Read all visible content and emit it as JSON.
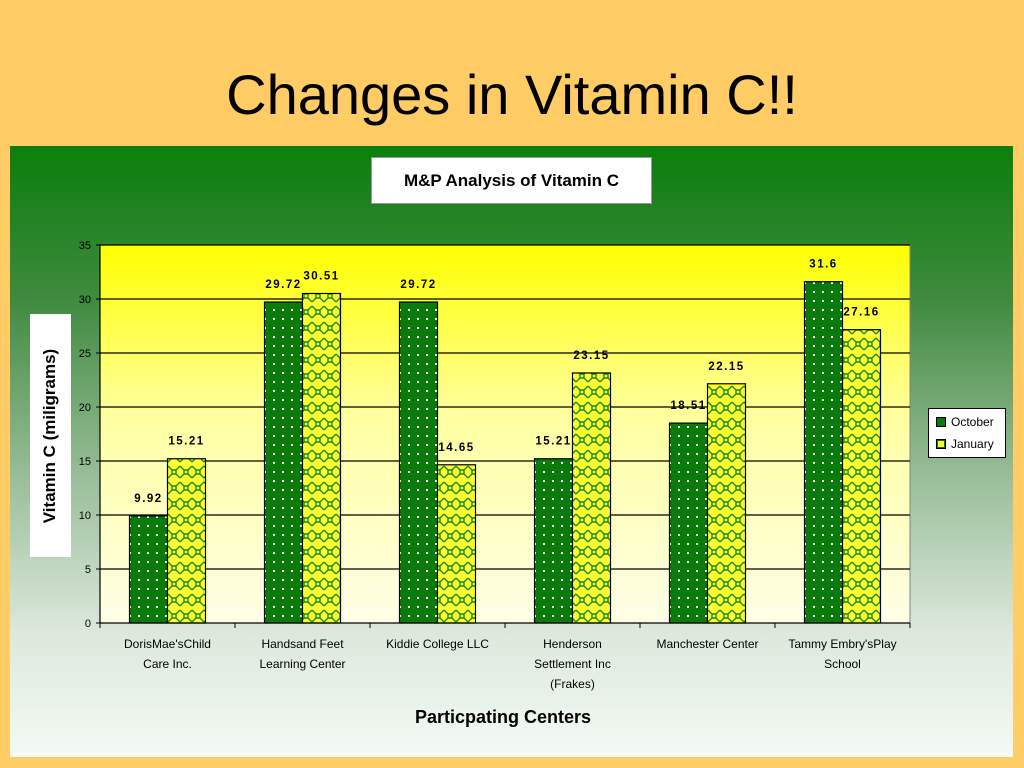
{
  "slide": {
    "title": "Changes in Vitamin C!!"
  },
  "colors": {
    "october": "#0a7a0a",
    "january": "#ffff33",
    "plot_top": "#ffff00",
    "plot_bottom": "#ffffe8",
    "slide_bg": "#ffcc66"
  },
  "chart_data": {
    "type": "bar",
    "title": "M&P Analysis of Vitamin C",
    "xlabel": "Particpating Centers",
    "ylabel": "Vitamin C (miligrams)",
    "ylim": [
      0,
      35
    ],
    "yticks": [
      0,
      5,
      10,
      15,
      20,
      25,
      30,
      35
    ],
    "grid": true,
    "legend_position": "right",
    "categories": [
      [
        "DorisMae'sChild",
        "Care Inc."
      ],
      [
        "Handsand Feet",
        "Learning Center"
      ],
      [
        "Kiddie College LLC"
      ],
      [
        "Henderson",
        "Settlement Inc",
        "(Frakes)"
      ],
      [
        "Manchester Center"
      ],
      [
        "Tammy Embry'sPlay",
        "School"
      ]
    ],
    "series": [
      {
        "name": "October",
        "values": [
          9.92,
          29.72,
          29.72,
          15.21,
          18.51,
          31.6
        ],
        "labels": [
          "9.92",
          "29.72",
          "29.72",
          "15.21",
          "18.51",
          "31.6"
        ]
      },
      {
        "name": "January",
        "values": [
          15.21,
          30.51,
          14.65,
          23.15,
          22.15,
          27.16
        ],
        "labels": [
          "15.21",
          "30.51",
          "14.65",
          "23.15",
          "22.15",
          "27.16"
        ]
      }
    ]
  }
}
